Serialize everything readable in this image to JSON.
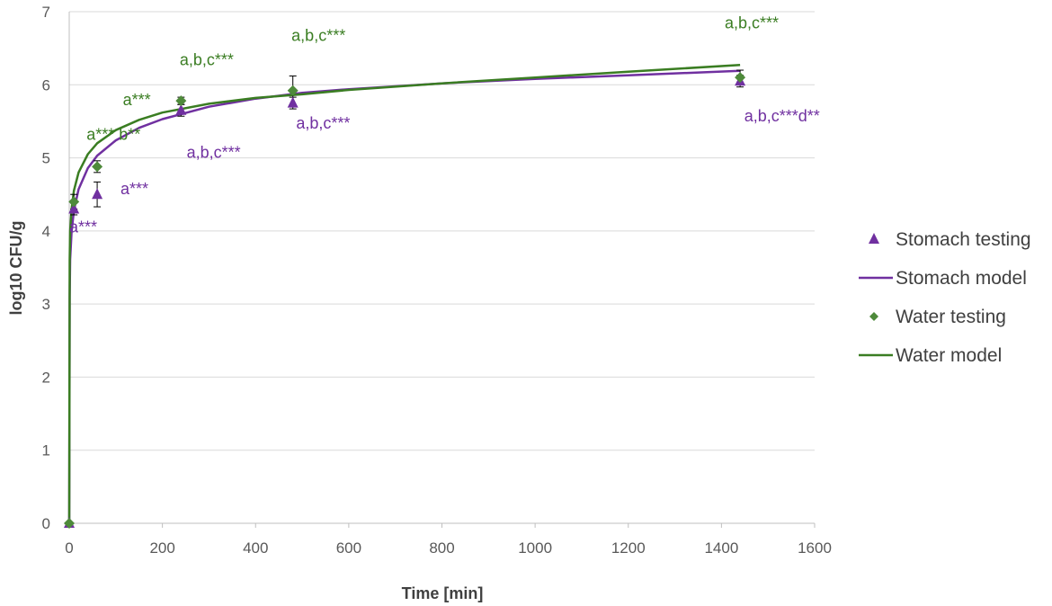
{
  "colors": {
    "stomach": "#7030A0",
    "water": "#3A7D22",
    "water_marker": "#4E8A3A",
    "grid": "#D9D9D9",
    "axis": "#BFBFBF",
    "errorbar": "#000000"
  },
  "chart_data": {
    "type": "scatter",
    "title": "",
    "xlabel": "Time [min]",
    "ylabel": "log10 CFU/g",
    "xlim": [
      0,
      1600
    ],
    "ylim": [
      0,
      7
    ],
    "xticks": [
      0,
      200,
      400,
      600,
      800,
      1000,
      1200,
      1400,
      1600
    ],
    "yticks": [
      0,
      1,
      2,
      3,
      4,
      5,
      6,
      7
    ],
    "grid": "horizontal",
    "legend_position": "right",
    "series": [
      {
        "name": "Stomach testing",
        "kind": "points",
        "marker": "triangle",
        "color_key": "stomach",
        "x": [
          0,
          10,
          60,
          240,
          480,
          1440
        ],
        "y": [
          0.0,
          4.3,
          4.5,
          5.65,
          5.75,
          6.05
        ],
        "err": [
          0,
          0.08,
          0.17,
          0.08,
          0.08,
          0.08
        ]
      },
      {
        "name": "Stomach model",
        "kind": "line",
        "color_key": "stomach",
        "x": [
          0,
          1,
          2,
          5,
          10,
          20,
          40,
          60,
          100,
          150,
          200,
          300,
          400,
          500,
          600,
          800,
          1000,
          1200,
          1440
        ],
        "y": [
          0.0,
          3.1,
          3.61,
          3.99,
          4.28,
          4.57,
          4.86,
          5.03,
          5.24,
          5.41,
          5.53,
          5.7,
          5.81,
          5.89,
          5.94,
          6.02,
          6.08,
          6.13,
          6.19
        ]
      },
      {
        "name": "Water testing",
        "kind": "points",
        "marker": "diamond",
        "color_key": "water",
        "x": [
          0,
          10,
          60,
          240,
          480,
          1440
        ],
        "y": [
          0.0,
          4.4,
          4.88,
          5.78,
          5.92,
          6.1
        ],
        "err": [
          0,
          0.1,
          0.08,
          0.05,
          0.2,
          0.1
        ]
      },
      {
        "name": "Water model",
        "kind": "line",
        "color_key": "water",
        "x": [
          0,
          1,
          2,
          5,
          10,
          20,
          40,
          60,
          100,
          150,
          200,
          300,
          400,
          500,
          600,
          800,
          1000,
          1200,
          1440
        ],
        "y": [
          0.0,
          3.6,
          4.0,
          4.3,
          4.55,
          4.8,
          5.05,
          5.2,
          5.38,
          5.52,
          5.62,
          5.74,
          5.82,
          5.87,
          5.93,
          6.02,
          6.1,
          6.18,
          6.27
        ]
      }
    ],
    "annotations": [
      {
        "text": "a***",
        "color_key": "stomach",
        "x": 30,
        "y": 3.98
      },
      {
        "text": "a***",
        "color_key": "stomach",
        "x": 140,
        "y": 4.5
      },
      {
        "text": "a,b,c***",
        "color_key": "stomach",
        "x": 310,
        "y": 5.0
      },
      {
        "text": "a,b,c***",
        "color_key": "stomach",
        "x": 545,
        "y": 5.4
      },
      {
        "text": "a,b,c***d**",
        "color_key": "stomach",
        "x": 1530,
        "y": 5.5
      },
      {
        "text": "a*** b**",
        "color_key": "water",
        "x": 95,
        "y": 5.25
      },
      {
        "text": "a***",
        "color_key": "water",
        "x": 145,
        "y": 5.72
      },
      {
        "text": "a,b,c***",
        "color_key": "water",
        "x": 295,
        "y": 6.27
      },
      {
        "text": "a,b,c***",
        "color_key": "water",
        "x": 535,
        "y": 6.6
      },
      {
        "text": "a,b,c***",
        "color_key": "water",
        "x": 1465,
        "y": 6.77
      }
    ]
  }
}
